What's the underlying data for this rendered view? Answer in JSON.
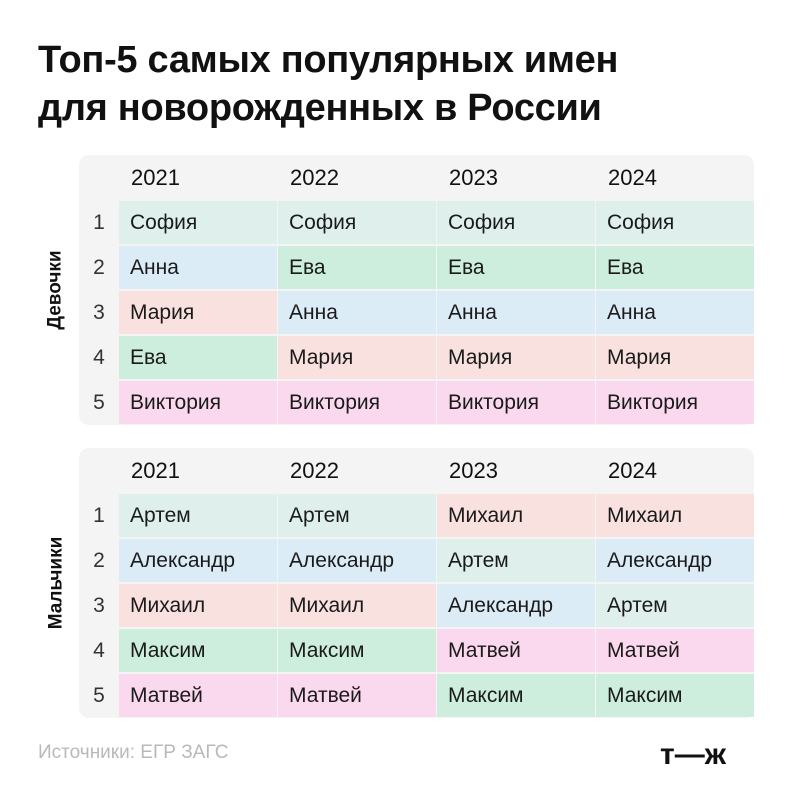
{
  "title": {
    "line1": "Топ-5 самых популярных имен",
    "line2": "для новорожденных в России"
  },
  "sections": [
    {
      "label": "Девочки",
      "years": [
        "2021",
        "2022",
        "2023",
        "2024"
      ],
      "ranks": [
        "1",
        "2",
        "3",
        "4",
        "5"
      ],
      "rows": [
        [
          {
            "name": "София",
            "key": "sofia"
          },
          {
            "name": "София",
            "key": "sofia"
          },
          {
            "name": "София",
            "key": "sofia"
          },
          {
            "name": "София",
            "key": "sofia"
          }
        ],
        [
          {
            "name": "Анна",
            "key": "anna"
          },
          {
            "name": "Ева",
            "key": "eva"
          },
          {
            "name": "Ева",
            "key": "eva"
          },
          {
            "name": "Ева",
            "key": "eva"
          }
        ],
        [
          {
            "name": "Мария",
            "key": "maria"
          },
          {
            "name": "Анна",
            "key": "anna"
          },
          {
            "name": "Анна",
            "key": "anna"
          },
          {
            "name": "Анна",
            "key": "anna"
          }
        ],
        [
          {
            "name": "Ева",
            "key": "eva"
          },
          {
            "name": "Мария",
            "key": "maria"
          },
          {
            "name": "Мария",
            "key": "maria"
          },
          {
            "name": "Мария",
            "key": "maria"
          }
        ],
        [
          {
            "name": "Виктория",
            "key": "viktoriya"
          },
          {
            "name": "Виктория",
            "key": "viktoriya"
          },
          {
            "name": "Виктория",
            "key": "viktoriya"
          },
          {
            "name": "Виктория",
            "key": "viktoriya"
          }
        ]
      ]
    },
    {
      "label": "Мальчики",
      "years": [
        "2021",
        "2022",
        "2023",
        "2024"
      ],
      "ranks": [
        "1",
        "2",
        "3",
        "4",
        "5"
      ],
      "rows": [
        [
          {
            "name": "Артем",
            "key": "artem"
          },
          {
            "name": "Артем",
            "key": "artem"
          },
          {
            "name": "Михаил",
            "key": "mikhail"
          },
          {
            "name": "Михаил",
            "key": "mikhail"
          }
        ],
        [
          {
            "name": "Александр",
            "key": "aleksandr"
          },
          {
            "name": "Александр",
            "key": "aleksandr"
          },
          {
            "name": "Артем",
            "key": "artem"
          },
          {
            "name": "Александр",
            "key": "aleksandr"
          }
        ],
        [
          {
            "name": "Михаил",
            "key": "mikhail"
          },
          {
            "name": "Михаил",
            "key": "mikhail"
          },
          {
            "name": "Александр",
            "key": "aleksandr"
          },
          {
            "name": "Артем",
            "key": "artem"
          }
        ],
        [
          {
            "name": "Максим",
            "key": "maksim"
          },
          {
            "name": "Максим",
            "key": "maksim"
          },
          {
            "name": "Матвей",
            "key": "matvei"
          },
          {
            "name": "Матвей",
            "key": "matvei"
          }
        ],
        [
          {
            "name": "Матвей",
            "key": "matvei"
          },
          {
            "name": "Матвей",
            "key": "matvei"
          },
          {
            "name": "Максим",
            "key": "maksim"
          },
          {
            "name": "Максим",
            "key": "maksim"
          }
        ]
      ]
    }
  ],
  "colors": {
    "sofia": "#dff0ec",
    "anna": "#dcecf6",
    "maria": "#f8e1df",
    "eva": "#cdeedd",
    "viktoriya": "#fad9ef",
    "artem": "#dff0ec",
    "aleksandr": "#dcecf6",
    "mikhail": "#f8e1df",
    "maksim": "#cdeedd",
    "matvei": "#fad9ef"
  },
  "footer": {
    "source": "Источники: ЕГР ЗАГС",
    "logo": "т—ж"
  }
}
